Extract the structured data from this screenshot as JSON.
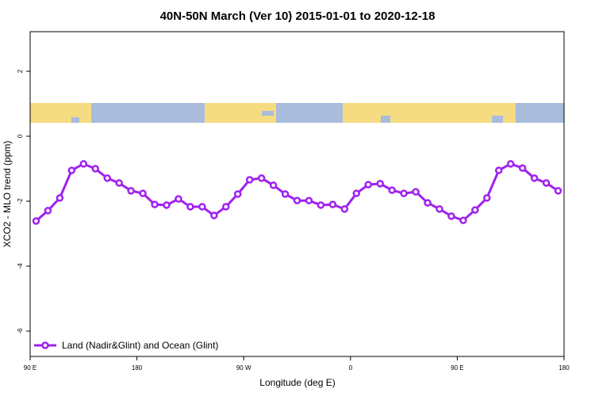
{
  "chart_data": {
    "type": "line",
    "title": "40N-50N March (Ver 10)   2015-01-01 to 2020-12-18",
    "x_label": "Longitude (deg E)",
    "y_label": "XCO2 - MLO trend (ppm)",
    "x": [
      95,
      105,
      115,
      125,
      135,
      145,
      155,
      165,
      175,
      185,
      195,
      205,
      215,
      225,
      235,
      245,
      255,
      265,
      275,
      285,
      295,
      305,
      315,
      325,
      335,
      345,
      355,
      365,
      375,
      385,
      395,
      405,
      415,
      425,
      435,
      445,
      455,
      465,
      475,
      485,
      495,
      505,
      515,
      525,
      535
    ],
    "series": [
      {
        "name": "Land (Nadir&Glint) and Ocean (Glint)",
        "color": "#a020f0",
        "values": [
          -2.61,
          -2.29,
          -1.9,
          -1.05,
          -0.85,
          -1.0,
          -1.29,
          -1.44,
          -1.68,
          -1.76,
          -2.1,
          -2.12,
          -1.93,
          -2.17,
          -2.17,
          -2.44,
          -2.17,
          -1.78,
          -1.34,
          -1.29,
          -1.51,
          -1.78,
          -1.98,
          -1.98,
          -2.12,
          -2.1,
          -2.24,
          -1.76,
          -1.49,
          -1.46,
          -1.66,
          -1.76,
          -1.71,
          -2.05,
          -2.24,
          -2.46,
          -2.59,
          -2.27,
          -1.9,
          -1.05,
          -0.85,
          -0.98,
          -1.29,
          -1.44,
          -1.68
        ]
      }
    ],
    "xlim": [
      90,
      540
    ],
    "xticks": [
      {
        "value": 90,
        "label": "90 E"
      },
      180,
      {
        "value": 270,
        "label": "90 W"
      },
      {
        "value": 360,
        "label": "0"
      },
      {
        "value": 450,
        "label": "90 E"
      },
      {
        "value": 540,
        "label": "180"
      }
    ],
    "ylim": [
      -6.78,
      3.22
    ],
    "yticks": [
      2,
      0,
      -2,
      -4,
      -6
    ],
    "legend": "bottom-left",
    "grid": false
  }
}
